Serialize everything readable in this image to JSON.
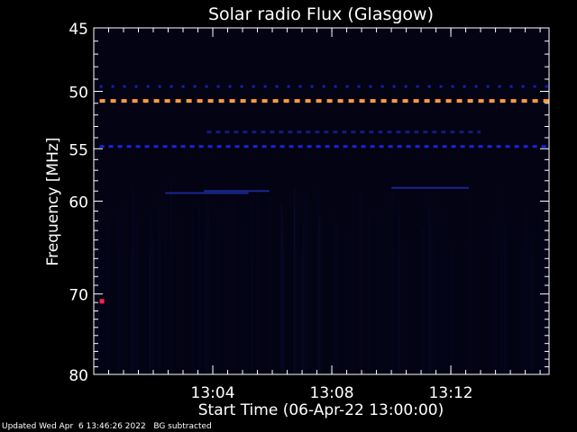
{
  "chart_data": {
    "type": "heatmap",
    "title": "Solar radio Flux (Glasgow)",
    "xlabel": "Start Time (06-Apr-22 13:00:00)",
    "ylabel": "Frequency [MHz]",
    "x_range_minutes": [
      0,
      15.3
    ],
    "x_ticks": [
      {
        "minute": 4,
        "label": "13:04"
      },
      {
        "minute": 8,
        "label": "13:08"
      },
      {
        "minute": 12,
        "label": "13:12"
      }
    ],
    "y_scale": "log",
    "y_range": [
      45,
      80
    ],
    "y_ticks": [
      {
        "value": 45,
        "label": "45"
      },
      {
        "value": 50,
        "label": "50"
      },
      {
        "value": 55,
        "label": "55"
      },
      {
        "value": 60,
        "label": "60"
      },
      {
        "value": 70,
        "label": "70"
      },
      {
        "value": 80,
        "label": "80"
      }
    ],
    "y_minor_ticks": [
      46,
      47,
      48,
      49,
      51,
      52,
      53,
      54,
      56,
      57,
      58,
      59,
      61,
      62,
      63,
      64,
      65,
      66,
      67,
      68,
      69,
      71,
      72,
      73,
      74,
      75,
      76,
      77,
      78,
      79
    ],
    "x_minor_step_minutes": 0.5,
    "features": [
      {
        "name": "interference-band",
        "freq": 50.8,
        "start": 0.2,
        "end": 15.3,
        "color": "#ff9a40",
        "style": "dashed"
      },
      {
        "name": "interference-band",
        "freq": 54.8,
        "start": 0.2,
        "end": 15.3,
        "color": "#1a24d8",
        "style": "dashed"
      },
      {
        "name": "interference-band",
        "freq": 49.6,
        "start": 0.2,
        "end": 15.3,
        "color": "#1520b0",
        "style": "dotted"
      },
      {
        "name": "interference-band",
        "freq": 53.5,
        "start": 3.8,
        "end": 13.0,
        "color": "#141c80",
        "style": "dashed"
      },
      {
        "name": "interference-band",
        "freq": 59.2,
        "start": 2.4,
        "end": 5.2,
        "color": "#1a2690",
        "style": "solid"
      },
      {
        "name": "interference-band",
        "freq": 59.0,
        "start": 3.7,
        "end": 5.9,
        "color": "#1a2690",
        "style": "solid"
      },
      {
        "name": "interference-band",
        "freq": 58.7,
        "start": 10.0,
        "end": 12.6,
        "color": "#1a2690",
        "style": "solid"
      },
      {
        "name": "hotspot",
        "freq": 70.8,
        "start": 0.2,
        "end": 0.35,
        "color": "#ff2050",
        "style": "solid"
      }
    ],
    "grid": false,
    "legend": "none",
    "background_color": "#000000",
    "colors": {
      "axes": "#ffffff",
      "text": "#ffffff",
      "background": "#030314"
    }
  },
  "footer": {
    "updated": "Updated Wed Apr  6 13:46:26 2022",
    "note": "BG subtracted"
  }
}
